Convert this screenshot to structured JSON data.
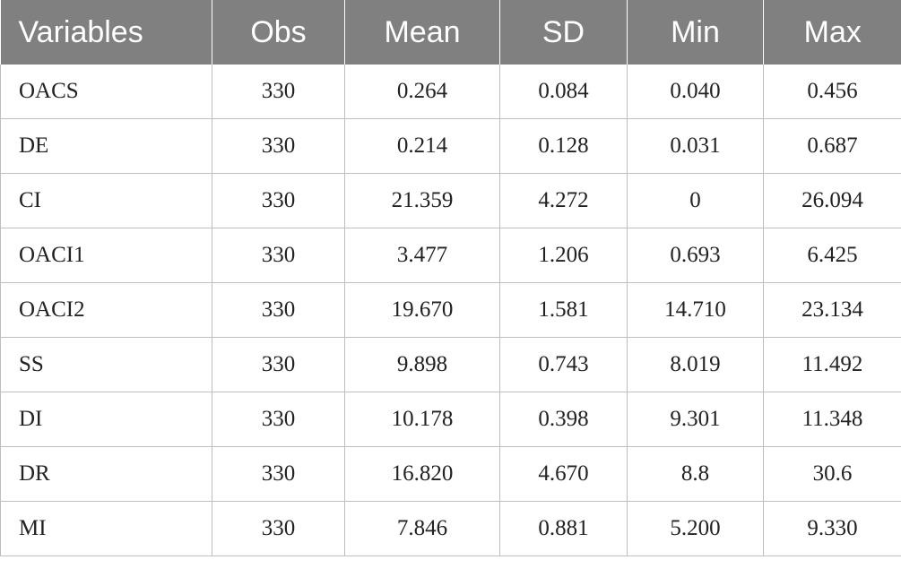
{
  "table": {
    "headers": [
      "Variables",
      "Obs",
      "Mean",
      "SD",
      "Min",
      "Max"
    ],
    "rows": [
      [
        "OACS",
        "330",
        "0.264",
        "0.084",
        "0.040",
        "0.456"
      ],
      [
        "DE",
        "330",
        "0.214",
        "0.128",
        "0.031",
        "0.687"
      ],
      [
        "CI",
        "330",
        "21.359",
        "4.272",
        "0",
        "26.094"
      ],
      [
        "OACI1",
        "330",
        "3.477",
        "1.206",
        "0.693",
        "6.425"
      ],
      [
        "OACI2",
        "330",
        "19.670",
        "1.581",
        "14.710",
        "23.134"
      ],
      [
        "SS",
        "330",
        "9.898",
        "0.743",
        "8.019",
        "11.492"
      ],
      [
        "DI",
        "330",
        "10.178",
        "0.398",
        "9.301",
        "11.348"
      ],
      [
        "DR",
        "330",
        "16.820",
        "4.670",
        "8.8",
        "30.6"
      ],
      [
        "MI",
        "330",
        "7.846",
        "0.881",
        "5.200",
        "9.330"
      ]
    ]
  },
  "colors": {
    "header_background": "#808080",
    "header_text": "#ffffff",
    "grid_line": "#bdbdbd"
  }
}
